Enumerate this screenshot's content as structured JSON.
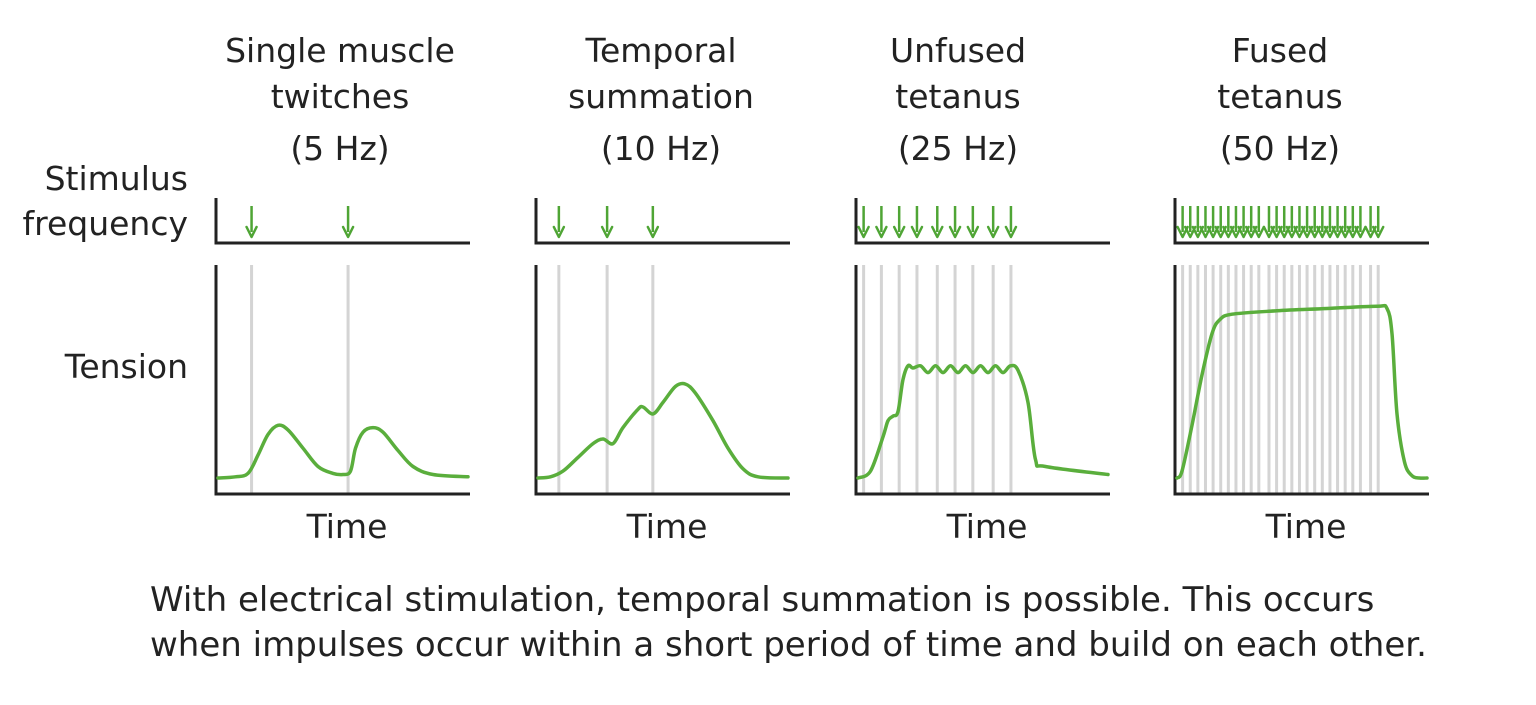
{
  "row_labels": {
    "stimulus": [
      "Stimulus",
      "frequency"
    ],
    "tension": "Tension"
  },
  "x_axis_label": "Time",
  "panels": [
    {
      "title_lines": [
        "Single muscle",
        "twitches",
        "(5 Hz)"
      ],
      "frequency_hz": 5,
      "stimuli": [
        0.14,
        0.52
      ],
      "tension_curve": [
        [
          0,
          0.07
        ],
        [
          0.07,
          0.075
        ],
        [
          0.12,
          0.09
        ],
        [
          0.16,
          0.17
        ],
        [
          0.2,
          0.26
        ],
        [
          0.24,
          0.3
        ],
        [
          0.28,
          0.28
        ],
        [
          0.34,
          0.2
        ],
        [
          0.4,
          0.12
        ],
        [
          0.46,
          0.09
        ],
        [
          0.5,
          0.085
        ],
        [
          0.53,
          0.1
        ],
        [
          0.55,
          0.2
        ],
        [
          0.58,
          0.27
        ],
        [
          0.62,
          0.29
        ],
        [
          0.66,
          0.27
        ],
        [
          0.72,
          0.19
        ],
        [
          0.78,
          0.12
        ],
        [
          0.86,
          0.085
        ],
        [
          1.0,
          0.075
        ]
      ]
    },
    {
      "title_lines": [
        "Temporal",
        "summation",
        "(10 Hz)"
      ],
      "frequency_hz": 10,
      "stimuli": [
        0.09,
        0.28,
        0.46
      ],
      "tension_curve": [
        [
          0,
          0.07
        ],
        [
          0.05,
          0.075
        ],
        [
          0.1,
          0.1
        ],
        [
          0.16,
          0.16
        ],
        [
          0.22,
          0.22
        ],
        [
          0.26,
          0.24
        ],
        [
          0.3,
          0.22
        ],
        [
          0.34,
          0.29
        ],
        [
          0.4,
          0.37
        ],
        [
          0.42,
          0.38
        ],
        [
          0.46,
          0.35
        ],
        [
          0.5,
          0.4
        ],
        [
          0.55,
          0.47
        ],
        [
          0.59,
          0.48
        ],
        [
          0.63,
          0.44
        ],
        [
          0.7,
          0.32
        ],
        [
          0.76,
          0.2
        ],
        [
          0.82,
          0.11
        ],
        [
          0.88,
          0.075
        ],
        [
          1.0,
          0.07
        ]
      ]
    },
    {
      "title_lines": [
        "Unfused",
        "tetanus",
        "(25 Hz)"
      ],
      "frequency_hz": 25,
      "stimuli": [
        0.03,
        0.1,
        0.17,
        0.24,
        0.32,
        0.39,
        0.46,
        0.54,
        0.61
      ],
      "tension_curve": [
        [
          0,
          0.07
        ],
        [
          0.05,
          0.1
        ],
        [
          0.1,
          0.25
        ],
        [
          0.12,
          0.32
        ],
        [
          0.14,
          0.34
        ],
        [
          0.16,
          0.36
        ],
        [
          0.18,
          0.5
        ],
        [
          0.2,
          0.56
        ],
        [
          0.22,
          0.55
        ],
        [
          0.25,
          0.56
        ],
        [
          0.28,
          0.53
        ],
        [
          0.31,
          0.56
        ],
        [
          0.34,
          0.53
        ],
        [
          0.37,
          0.56
        ],
        [
          0.4,
          0.53
        ],
        [
          0.43,
          0.56
        ],
        [
          0.46,
          0.53
        ],
        [
          0.49,
          0.56
        ],
        [
          0.52,
          0.53
        ],
        [
          0.55,
          0.56
        ],
        [
          0.58,
          0.53
        ],
        [
          0.61,
          0.56
        ],
        [
          0.64,
          0.54
        ],
        [
          0.68,
          0.4
        ],
        [
          0.71,
          0.15
        ],
        [
          0.75,
          0.12
        ],
        [
          1.0,
          0.085
        ]
      ]
    },
    {
      "title_lines": [
        "Fused",
        "tetanus",
        "(50 Hz)"
      ],
      "frequency_hz": 50,
      "stimuli": [
        0.03,
        0.06,
        0.09,
        0.12,
        0.15,
        0.18,
        0.21,
        0.24,
        0.27,
        0.3,
        0.33,
        0.37,
        0.4,
        0.43,
        0.46,
        0.49,
        0.52,
        0.55,
        0.58,
        0.61,
        0.64,
        0.67,
        0.7,
        0.73,
        0.77,
        0.8
      ],
      "tension_curve": [
        [
          0,
          0.07
        ],
        [
          0.02,
          0.1
        ],
        [
          0.06,
          0.3
        ],
        [
          0.1,
          0.52
        ],
        [
          0.14,
          0.7
        ],
        [
          0.17,
          0.76
        ],
        [
          0.22,
          0.785
        ],
        [
          0.4,
          0.8
        ],
        [
          0.6,
          0.81
        ],
        [
          0.8,
          0.82
        ],
        [
          0.84,
          0.81
        ],
        [
          0.86,
          0.7
        ],
        [
          0.88,
          0.35
        ],
        [
          0.91,
          0.14
        ],
        [
          0.94,
          0.08
        ],
        [
          0.97,
          0.07
        ],
        [
          1.0,
          0.07
        ]
      ]
    }
  ],
  "caption": [
    "With electrical stimulation, temporal summation is possible. This occurs",
    "when impulses occur within a short period of time and build on each other."
  ],
  "colors": {
    "curve": "#5aae3c",
    "stimulus_arrow": "#4fa535",
    "guide_line": "#d4d4d4",
    "axis": "#222222",
    "text": "#222222"
  }
}
